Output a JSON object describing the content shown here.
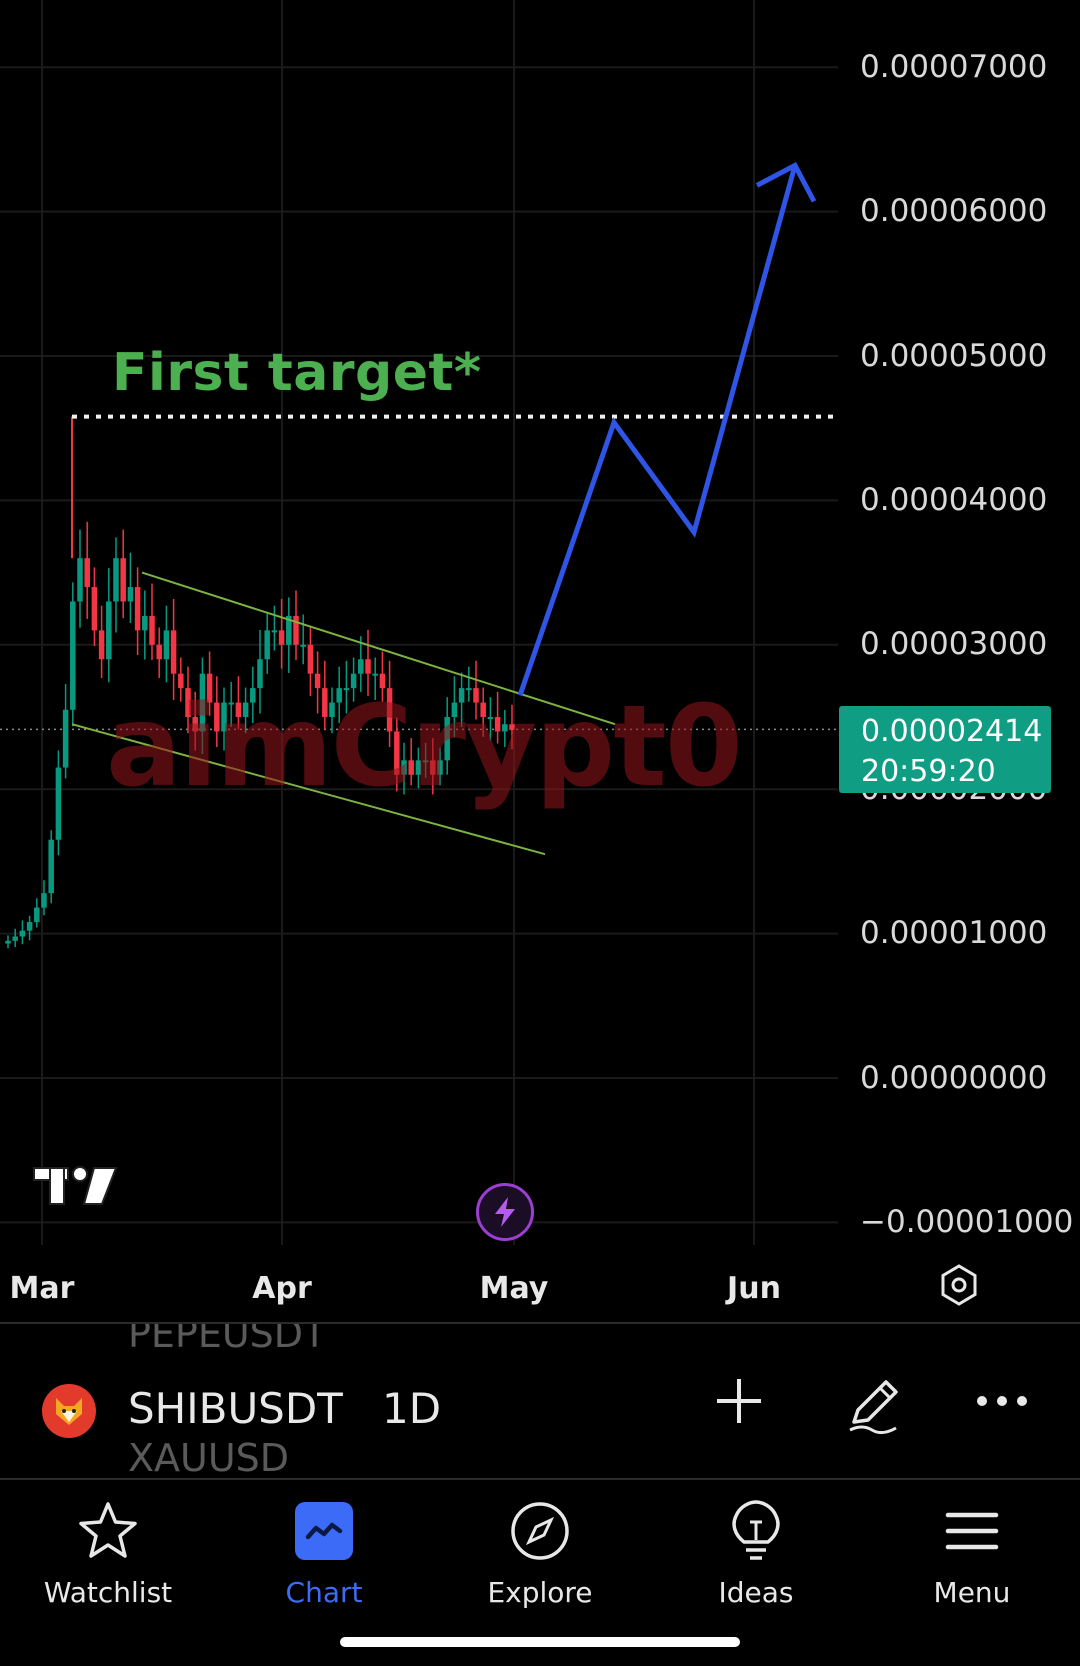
{
  "chart": {
    "price_axis": [
      "0.00007000",
      "0.00006000",
      "0.00005000",
      "0.00004000",
      "0.00003000",
      "0.00001000",
      "0.00000000",
      "−0.00001000"
    ],
    "hidden_price_label": "0.00002000",
    "time_axis": [
      "Mar",
      "Apr",
      "May",
      "Jun"
    ],
    "last_price": "0.00002414",
    "countdown": "20:59:20",
    "annotation": "First target*",
    "watermark": "aimCrypt0",
    "colors": {
      "up_candle": "#089981",
      "down_candle": "#f23645",
      "projection_line": "#2f55e6",
      "channel_line": "#7cb342",
      "target_text": "#4caf50",
      "last_price_bg": "#0f9e83"
    }
  },
  "chart_data": {
    "type": "candlestick",
    "symbol": "SHIBUSDT",
    "interval": "1D",
    "y_range": [
      -1e-05,
      7.5e-05
    ],
    "x_ticks": [
      "Mar",
      "Apr",
      "May",
      "Jun"
    ],
    "last_close": 2.414e-05,
    "target_level": 4.58e-05,
    "projection_path": [
      2.65e-05,
      4.54e-05,
      3.78e-05,
      6.32e-05
    ],
    "channel_upper": [
      3.5e-05,
      2.45e-05
    ],
    "channel_lower": [
      2.45e-05,
      1.55e-05
    ],
    "closes": [
      9.5e-06,
      9.8e-06,
      1.02e-05,
      1.08e-05,
      1.18e-05,
      1.28e-05,
      1.65e-05,
      2.15e-05,
      2.55e-05,
      3.3e-05,
      3.6e-05,
      3.4e-05,
      3.1e-05,
      2.9e-05,
      3.3e-05,
      3.6e-05,
      3.3e-05,
      3.4e-05,
      3.1e-05,
      3.2e-05,
      3e-05,
      2.9e-05,
      3.1e-05,
      2.8e-05,
      2.7e-05,
      2.5e-05,
      2.4e-05,
      2.8e-05,
      2.6e-05,
      2.4e-05,
      2.6e-05,
      2.6e-05,
      2.5e-05,
      2.6e-05,
      2.7e-05,
      2.9e-05,
      3.1e-05,
      3.1e-05,
      3e-05,
      3.2e-05,
      3e-05,
      3e-05,
      2.8e-05,
      2.7e-05,
      2.5e-05,
      2.6e-05,
      2.7e-05,
      2.7e-05,
      2.8e-05,
      2.9e-05,
      2.8e-05,
      2.8e-05,
      2.7e-05,
      2.4e-05,
      2.1e-05,
      2.2e-05,
      2.1e-05,
      2.2e-05,
      2.2e-05,
      2.1e-05,
      2.2e-05,
      2.5e-05,
      2.6e-05,
      2.7e-05,
      2.7e-05,
      2.6e-05,
      2.5e-05,
      2.5e-05,
      2.4e-05,
      2.45e-05,
      2.41e-05
    ]
  },
  "symbol_bar": {
    "prev_symbol": "PEPEUSDT",
    "symbol": "SHIBUSDT",
    "interval": "1D",
    "next_symbol": "XAUUSD"
  },
  "nav": {
    "items": [
      {
        "label": "Watchlist",
        "icon": "star-icon"
      },
      {
        "label": "Chart",
        "icon": "chart-icon"
      },
      {
        "label": "Explore",
        "icon": "compass-icon"
      },
      {
        "label": "Ideas",
        "icon": "lightbulb-icon"
      },
      {
        "label": "Menu",
        "icon": "menu-icon"
      }
    ],
    "active": "Chart"
  }
}
